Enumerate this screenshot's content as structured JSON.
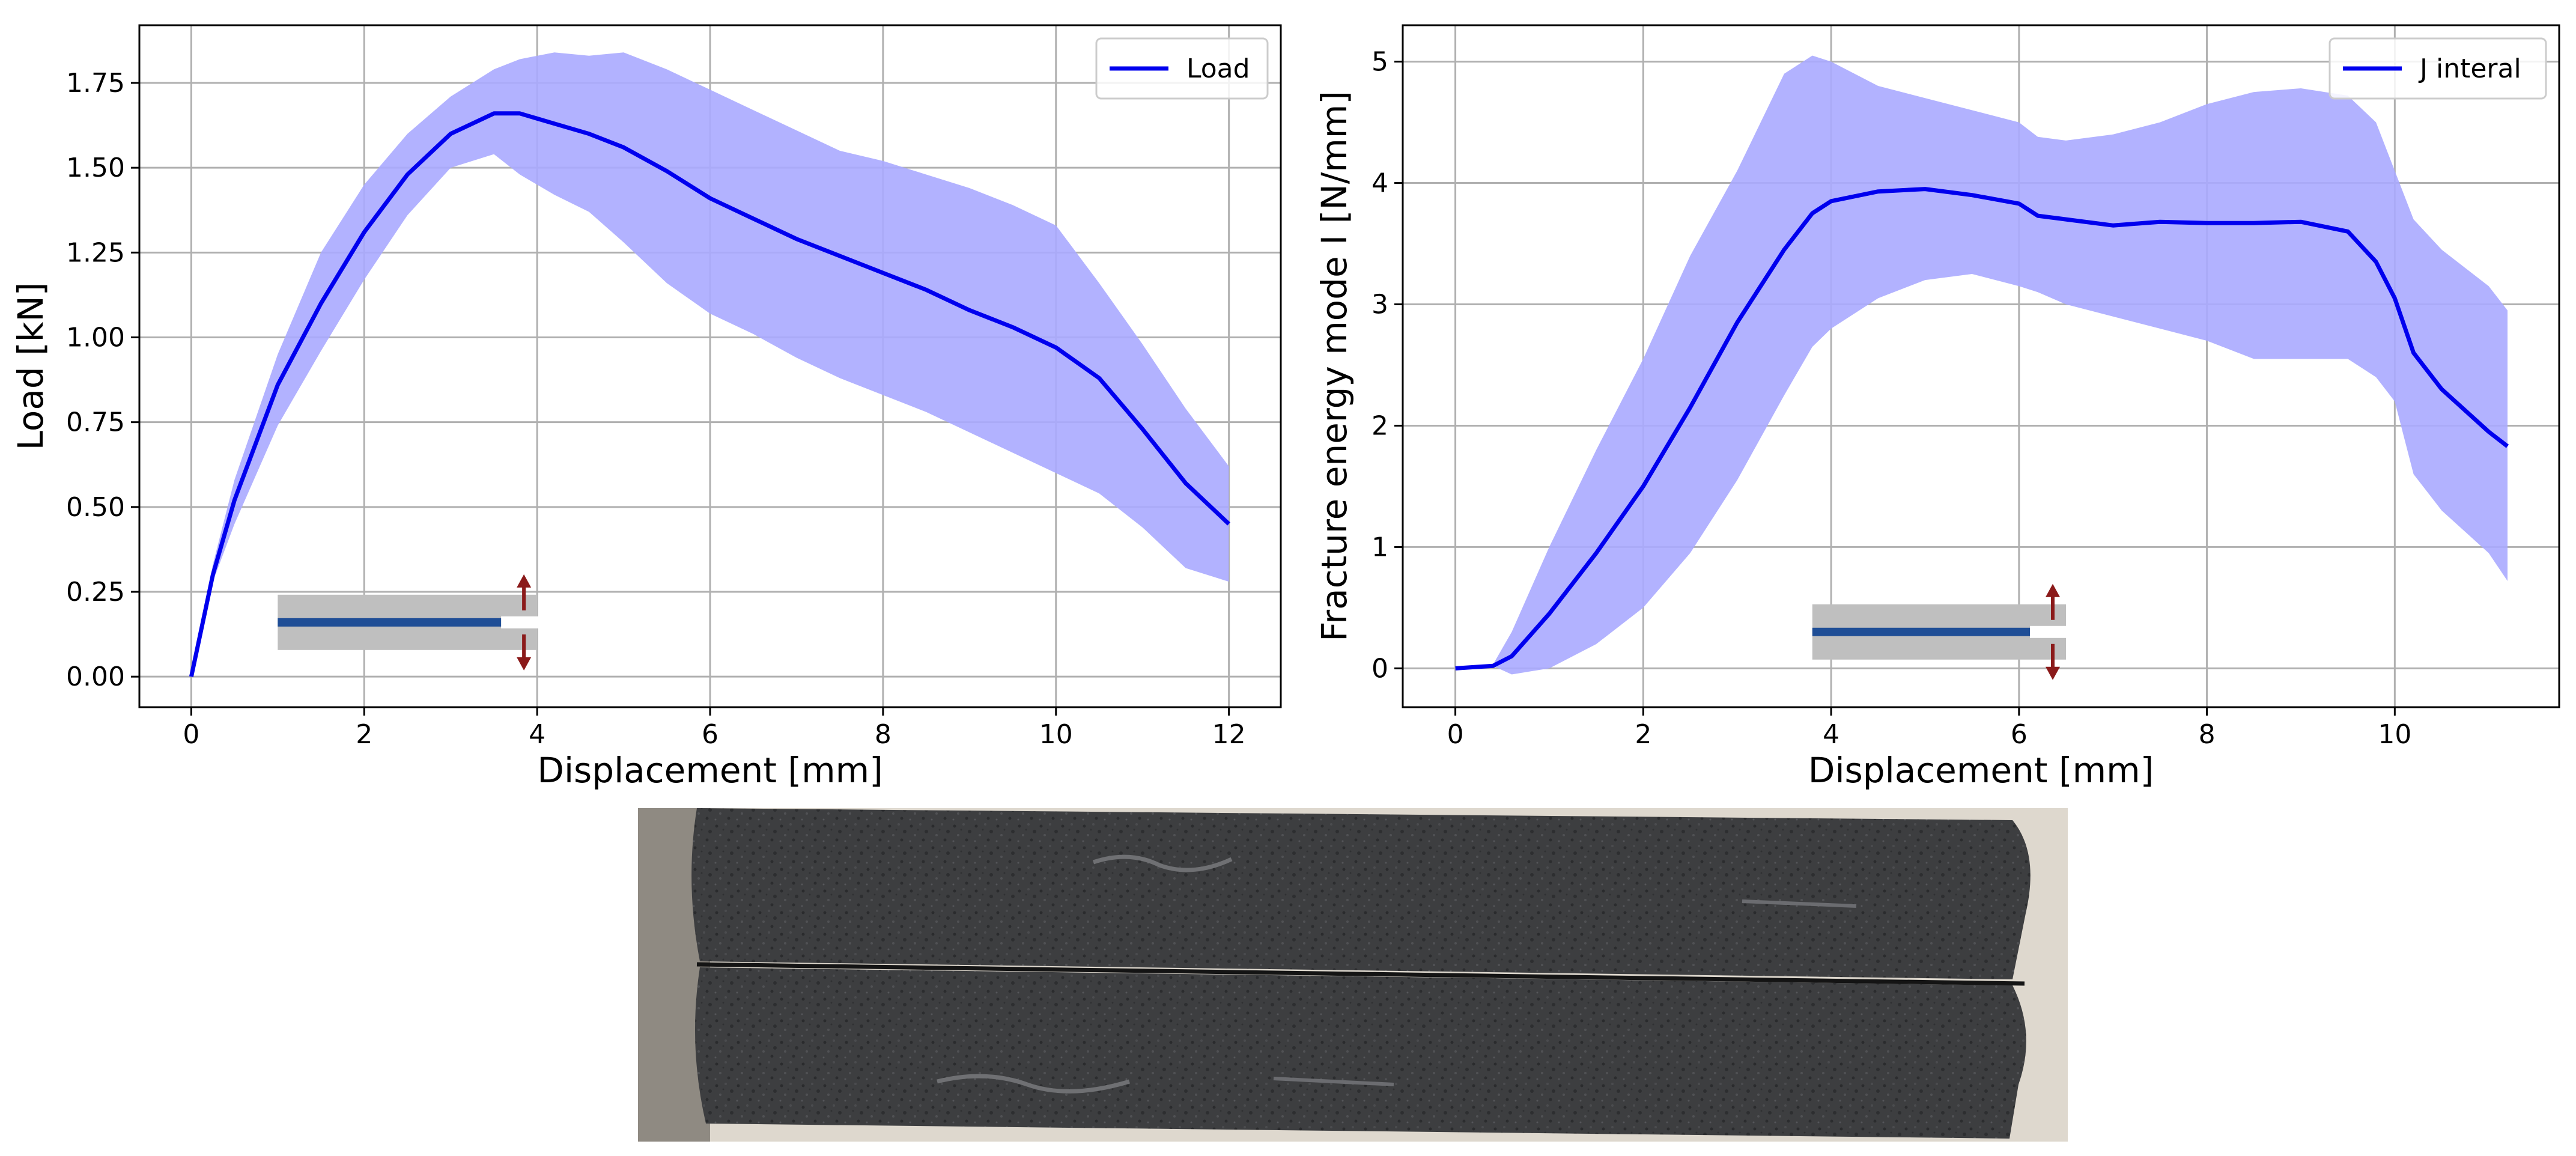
{
  "colors": {
    "line": "#0000ee",
    "band": "#aaaaff",
    "grid": "#b0b0b0",
    "specimen_gray": "#bfbfbf",
    "specimen_blue": "#1f4e96",
    "arrow": "#8b1a1a",
    "photo_dark": "#3d3e40",
    "photo_edge": "#dcd6cc",
    "photo_crack": "#141414"
  },
  "chart_data": [
    {
      "type": "line",
      "xlabel": "Displacement [mm]",
      "ylabel": "Load [kN]",
      "xlim": [
        -0.6,
        12.6
      ],
      "ylim": [
        -0.09,
        1.92
      ],
      "xticks": [
        0,
        2,
        4,
        6,
        8,
        10,
        12
      ],
      "yticks": [
        0.0,
        0.25,
        0.5,
        0.75,
        1.0,
        1.25,
        1.5,
        1.75
      ],
      "yticklabels": [
        "0.00",
        "0.25",
        "0.50",
        "0.75",
        "1.00",
        "1.25",
        "1.50",
        "1.75"
      ],
      "grid": true,
      "legend_position": "top-right",
      "series": [
        {
          "name": "Load",
          "x": [
            0,
            0.25,
            0.5,
            1.0,
            1.5,
            2.0,
            2.5,
            3.0,
            3.5,
            3.8,
            4.2,
            4.6,
            5.0,
            5.5,
            6.0,
            6.5,
            7.0,
            7.5,
            8.0,
            8.5,
            9.0,
            9.5,
            10.0,
            10.5,
            11.0,
            11.5,
            12.0
          ],
          "y": [
            0.0,
            0.3,
            0.52,
            0.86,
            1.1,
            1.31,
            1.48,
            1.6,
            1.66,
            1.66,
            1.63,
            1.6,
            1.56,
            1.49,
            1.41,
            1.35,
            1.29,
            1.24,
            1.19,
            1.14,
            1.08,
            1.03,
            0.97,
            0.88,
            0.73,
            0.57,
            0.45
          ],
          "band_lower": [
            0.0,
            0.28,
            0.45,
            0.74,
            0.96,
            1.17,
            1.36,
            1.5,
            1.54,
            1.48,
            1.42,
            1.37,
            1.28,
            1.16,
            1.07,
            1.01,
            0.94,
            0.88,
            0.83,
            0.78,
            0.72,
            0.66,
            0.6,
            0.54,
            0.44,
            0.32,
            0.28
          ],
          "band_upper": [
            0.0,
            0.33,
            0.58,
            0.95,
            1.25,
            1.45,
            1.6,
            1.71,
            1.79,
            1.82,
            1.84,
            1.83,
            1.84,
            1.79,
            1.73,
            1.67,
            1.61,
            1.55,
            1.52,
            1.48,
            1.44,
            1.39,
            1.33,
            1.16,
            0.98,
            0.79,
            0.62
          ]
        }
      ],
      "inset": {
        "x_range": [
          1.0,
          4.0
        ],
        "y_center": 0.16
      }
    },
    {
      "type": "line",
      "xlabel": "Displacement [mm]",
      "ylabel": "Fracture energy mode I [N/mm]",
      "xlim": [
        -0.56,
        11.75
      ],
      "ylim": [
        -0.32,
        5.3
      ],
      "xticks": [
        0,
        2,
        4,
        6,
        8,
        10
      ],
      "yticks": [
        0,
        1,
        2,
        3,
        4,
        5
      ],
      "yticklabels": [
        "0",
        "1",
        "2",
        "3",
        "4",
        "5"
      ],
      "grid": true,
      "legend_position": "top-right",
      "series": [
        {
          "name": "J interal",
          "x": [
            0,
            0.4,
            0.6,
            1.0,
            1.5,
            2.0,
            2.5,
            3.0,
            3.5,
            3.8,
            4.0,
            4.5,
            5.0,
            5.5,
            6.0,
            6.2,
            6.5,
            7.0,
            7.5,
            8.0,
            8.5,
            9.0,
            9.5,
            9.8,
            10.0,
            10.2,
            10.5,
            11.0,
            11.2
          ],
          "y": [
            0.0,
            0.02,
            0.1,
            0.45,
            0.95,
            1.5,
            2.15,
            2.85,
            3.45,
            3.75,
            3.85,
            3.93,
            3.95,
            3.9,
            3.83,
            3.73,
            3.7,
            3.65,
            3.68,
            3.67,
            3.67,
            3.68,
            3.6,
            3.35,
            3.05,
            2.6,
            2.3,
            1.95,
            1.83
          ],
          "band_lower": [
            0.0,
            0.02,
            -0.05,
            0.0,
            0.2,
            0.5,
            0.95,
            1.55,
            2.25,
            2.65,
            2.8,
            3.05,
            3.2,
            3.25,
            3.15,
            3.1,
            3.0,
            2.9,
            2.8,
            2.7,
            2.55,
            2.55,
            2.55,
            2.4,
            2.2,
            1.6,
            1.3,
            0.95,
            0.72
          ],
          "band_upper": [
            0.0,
            0.03,
            0.3,
            1.0,
            1.8,
            2.55,
            3.4,
            4.1,
            4.9,
            5.05,
            5.0,
            4.8,
            4.7,
            4.6,
            4.5,
            4.38,
            4.35,
            4.4,
            4.5,
            4.65,
            4.75,
            4.78,
            4.72,
            4.5,
            4.1,
            3.7,
            3.45,
            3.15,
            2.95
          ]
        }
      ],
      "inset": {
        "x_range": [
          3.8,
          6.5
        ],
        "y_center": 0.3
      }
    }
  ]
}
